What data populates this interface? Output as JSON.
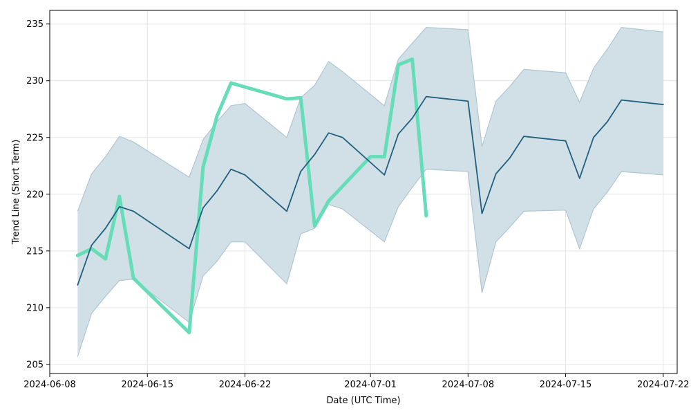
{
  "chart_data": {
    "type": "line",
    "title": "",
    "xlabel": "Date (UTC Time)",
    "ylabel": "Trend Line (Short Term)",
    "x_axis_type": "date",
    "xlim": [
      "2024-06-08",
      "2024-07-23"
    ],
    "ylim": [
      204.2,
      236.2
    ],
    "x_ticks": [
      "2024-06-08",
      "2024-06-15",
      "2024-06-22",
      "2024-07-01",
      "2024-07-08",
      "2024-07-15",
      "2024-07-22"
    ],
    "y_ticks": [
      205,
      210,
      215,
      220,
      225,
      230,
      235
    ],
    "grid": true,
    "legend": "none",
    "colors": {
      "actual": "#66DDB8",
      "trend": "#1F5F7F",
      "band_fill": "#D1DFE6",
      "band_edge": "#AFC6D3",
      "grid": "#E5E5E5"
    },
    "series": [
      {
        "role": "actual",
        "x": [
          "2024-06-10",
          "2024-06-11",
          "2024-06-12",
          "2024-06-13",
          "2024-06-14",
          "2024-06-18",
          "2024-06-19",
          "2024-06-20",
          "2024-06-21",
          "2024-06-25",
          "2024-06-26",
          "2024-06-27",
          "2024-06-28",
          "2024-07-01",
          "2024-07-02",
          "2024-07-03",
          "2024-07-04",
          "2024-07-05",
          "2024-07-08"
        ],
        "y": [
          214.6,
          215.2,
          214.3,
          219.8,
          212.6,
          207.8,
          222.4,
          226.9,
          229.8,
          228.4,
          228.5,
          217.2,
          219.4,
          223.3,
          223.3,
          231.4,
          231.9,
          218.1,
          null
        ]
      },
      {
        "role": "trend",
        "x": [
          "2024-06-10",
          "2024-06-11",
          "2024-06-12",
          "2024-06-13",
          "2024-06-14",
          "2024-06-18",
          "2024-06-19",
          "2024-06-20",
          "2024-06-21",
          "2024-06-22",
          "2024-06-25",
          "2024-06-26",
          "2024-06-27",
          "2024-06-28",
          "2024-06-29",
          "2024-07-02",
          "2024-07-03",
          "2024-07-04",
          "2024-07-05",
          "2024-07-08",
          "2024-07-09",
          "2024-07-10",
          "2024-07-11",
          "2024-07-12",
          "2024-07-15",
          "2024-07-16",
          "2024-07-17",
          "2024-07-18",
          "2024-07-19",
          "2024-07-22"
        ],
        "y": [
          212.0,
          215.5,
          217.0,
          218.9,
          218.5,
          215.2,
          218.8,
          220.3,
          222.2,
          221.7,
          218.5,
          222.0,
          223.5,
          225.4,
          225.0,
          221.7,
          225.3,
          226.7,
          228.6,
          228.2,
          218.3,
          221.8,
          223.2,
          225.1,
          224.7,
          221.4,
          225.0,
          226.4,
          228.3,
          227.9
        ]
      }
    ],
    "band": {
      "x": [
        "2024-06-10",
        "2024-06-11",
        "2024-06-12",
        "2024-06-13",
        "2024-06-14",
        "2024-06-18",
        "2024-06-19",
        "2024-06-20",
        "2024-06-21",
        "2024-06-22",
        "2024-06-25",
        "2024-06-26",
        "2024-06-27",
        "2024-06-28",
        "2024-06-29",
        "2024-07-02",
        "2024-07-03",
        "2024-07-04",
        "2024-07-05",
        "2024-07-08",
        "2024-07-09",
        "2024-07-10",
        "2024-07-11",
        "2024-07-12",
        "2024-07-15",
        "2024-07-16",
        "2024-07-17",
        "2024-07-18",
        "2024-07-19",
        "2024-07-22"
      ],
      "upper": [
        218.5,
        221.8,
        223.3,
        225.1,
        224.6,
        221.5,
        224.8,
        226.4,
        227.8,
        228.0,
        225.0,
        228.5,
        229.6,
        231.7,
        230.8,
        227.8,
        231.9,
        233.3,
        234.7,
        234.5,
        224.2,
        228.2,
        229.5,
        231.0,
        230.7,
        228.1,
        231.1,
        232.8,
        234.7,
        234.3
      ],
      "lower": [
        205.7,
        209.5,
        211.0,
        212.4,
        212.5,
        208.7,
        212.8,
        214.1,
        215.8,
        215.8,
        212.1,
        216.5,
        217.0,
        219.1,
        218.7,
        215.8,
        218.9,
        220.6,
        222.2,
        222.0,
        211.3,
        215.8,
        217.1,
        218.5,
        218.6,
        215.2,
        218.7,
        220.2,
        222.0,
        221.7
      ]
    }
  }
}
